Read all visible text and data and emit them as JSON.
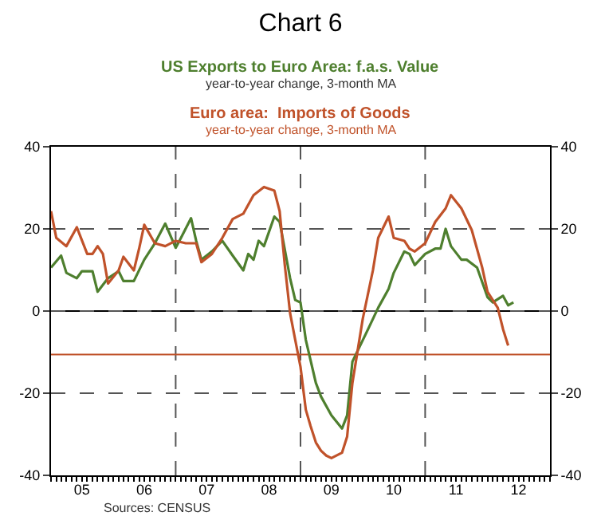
{
  "chart_data": {
    "type": "line",
    "title": "Chart 6",
    "series": [
      {
        "name": "US Exports to Euro Area: f.a.s. Value",
        "color": "#4e7f2e",
        "x": [
          "2005-01",
          "2005-03",
          "2005-04",
          "2005-06",
          "2005-07",
          "2005-09",
          "2005-10",
          "2005-12",
          "2006-02",
          "2006-03",
          "2006-05",
          "2006-07",
          "2006-09",
          "2006-11",
          "2007-01",
          "2007-02",
          "2007-04",
          "2007-05",
          "2007-06",
          "2007-08",
          "2007-10",
          "2007-12",
          "2008-02",
          "2008-03",
          "2008-04",
          "2008-05",
          "2008-06",
          "2008-08",
          "2008-09",
          "2008-11",
          "2008-12",
          "2009-01",
          "2009-02",
          "2009-04",
          "2009-05",
          "2009-07",
          "2009-09",
          "2009-10",
          "2009-11",
          "2010-02",
          "2010-04",
          "2010-06",
          "2010-07",
          "2010-09",
          "2010-10",
          "2010-11",
          "2011-01",
          "2011-03",
          "2011-04",
          "2011-05",
          "2011-06",
          "2011-08",
          "2011-09",
          "2011-11",
          "2012-01",
          "2012-02",
          "2012-04",
          "2012-05",
          "2012-06"
        ],
        "values": [
          10.6,
          13.5,
          9.3,
          8,
          9.7,
          9.7,
          4.7,
          8,
          9.7,
          7.3,
          7.3,
          12.5,
          16.5,
          21.3,
          15.4,
          17.8,
          22.6,
          17.1,
          12.5,
          14.5,
          17.1,
          13.5,
          9.9,
          13.9,
          12.5,
          17.1,
          15.8,
          23,
          21.7,
          8,
          2.7,
          2.1,
          -7,
          -17.5,
          -20.8,
          -25.4,
          -28.6,
          -25.4,
          -12.3,
          -4.4,
          0.8,
          5.4,
          9.3,
          14.5,
          13.9,
          11.2,
          13.9,
          15.2,
          15.2,
          20,
          15.8,
          12.5,
          12.5,
          10.6,
          3.4,
          2.1,
          3.7,
          1.4,
          2.1
        ]
      },
      {
        "name": "Euro area:  Imports of Goods",
        "color": "#c0522a",
        "x": [
          "2005-01",
          "2005-02",
          "2005-04",
          "2005-06",
          "2005-08",
          "2005-09",
          "2005-10",
          "2005-11",
          "2005-12",
          "2006-02",
          "2006-03",
          "2006-05",
          "2006-06",
          "2006-07",
          "2006-09",
          "2006-11",
          "2007-01",
          "2007-03",
          "2007-05",
          "2007-06",
          "2007-08",
          "2007-10",
          "2007-12",
          "2008-02",
          "2008-04",
          "2008-06",
          "2008-08",
          "2008-09",
          "2008-10",
          "2008-11",
          "2008-12",
          "2009-01",
          "2009-02",
          "2009-03",
          "2009-04",
          "2009-05",
          "2009-06",
          "2009-07",
          "2009-09",
          "2009-10",
          "2009-11",
          "2010-01",
          "2010-03",
          "2010-04",
          "2010-06",
          "2010-07",
          "2010-09",
          "2010-10",
          "2010-11",
          "2011-01",
          "2011-03",
          "2011-05",
          "2011-06",
          "2011-08",
          "2011-10",
          "2011-12",
          "2012-01",
          "2012-03",
          "2012-04",
          "2012-05"
        ],
        "values": [
          24.3,
          17.8,
          15.8,
          20.4,
          13.9,
          13.9,
          15.8,
          13.9,
          6.7,
          9.9,
          13.2,
          9.9,
          15.2,
          21,
          16.5,
          15.8,
          17.1,
          16.5,
          16.5,
          11.9,
          13.9,
          17.8,
          22.4,
          23.7,
          28.2,
          30.2,
          29.3,
          24.3,
          11.2,
          -0.5,
          -7,
          -13.6,
          -24,
          -28,
          -32,
          -34,
          -35.2,
          -35.8,
          -34.5,
          -30.6,
          -17.5,
          -1.8,
          9.9,
          17.8,
          23,
          17.8,
          17.1,
          15.2,
          14.5,
          16.5,
          21.7,
          25,
          28.2,
          25,
          19.7,
          10.6,
          4.7,
          0.8,
          -4.4,
          -8.4
        ]
      }
    ],
    "annotations": [
      "year-to-year change, 3-month MA",
      "year-to-year change, 3-month MA",
      "Sources: CENSUS"
    ],
    "xlim": [
      "2005-01",
      "2013-01"
    ],
    "xticks": [
      {
        "value": "2005-07",
        "label": "05"
      },
      {
        "value": "2006-07",
        "label": "06"
      },
      {
        "value": "2007-07",
        "label": "07"
      },
      {
        "value": "2008-07",
        "label": "08"
      },
      {
        "value": "2009-07",
        "label": "09"
      },
      {
        "value": "2010-07",
        "label": "10"
      },
      {
        "value": "2011-07",
        "label": "11"
      },
      {
        "value": "2012-07",
        "label": "12"
      }
    ],
    "ylim": [
      -40,
      40
    ],
    "yticks": [
      -40,
      -20,
      0,
      20,
      40
    ],
    "y2lim": [
      -40,
      40
    ],
    "y2ticks": [
      -40,
      -20,
      0,
      20,
      40
    ],
    "grid": "y",
    "ref_lines": [
      {
        "axis": "x",
        "value": "2007-01",
        "color": "#555555",
        "line_style": "dashed"
      },
      {
        "axis": "x",
        "value": "2009-01",
        "color": "#555555",
        "line_style": "dashed"
      },
      {
        "axis": "x",
        "value": "2011-01",
        "color": "#555555",
        "line_style": "dashed"
      },
      {
        "axis": "y",
        "value": 0,
        "color": "#000000",
        "line_style": "solid"
      },
      {
        "axis": "y",
        "value": -10.6,
        "color": "#c0522a",
        "line_style": "solid"
      }
    ],
    "legend": false,
    "marker": "none",
    "line_style": "solid"
  }
}
